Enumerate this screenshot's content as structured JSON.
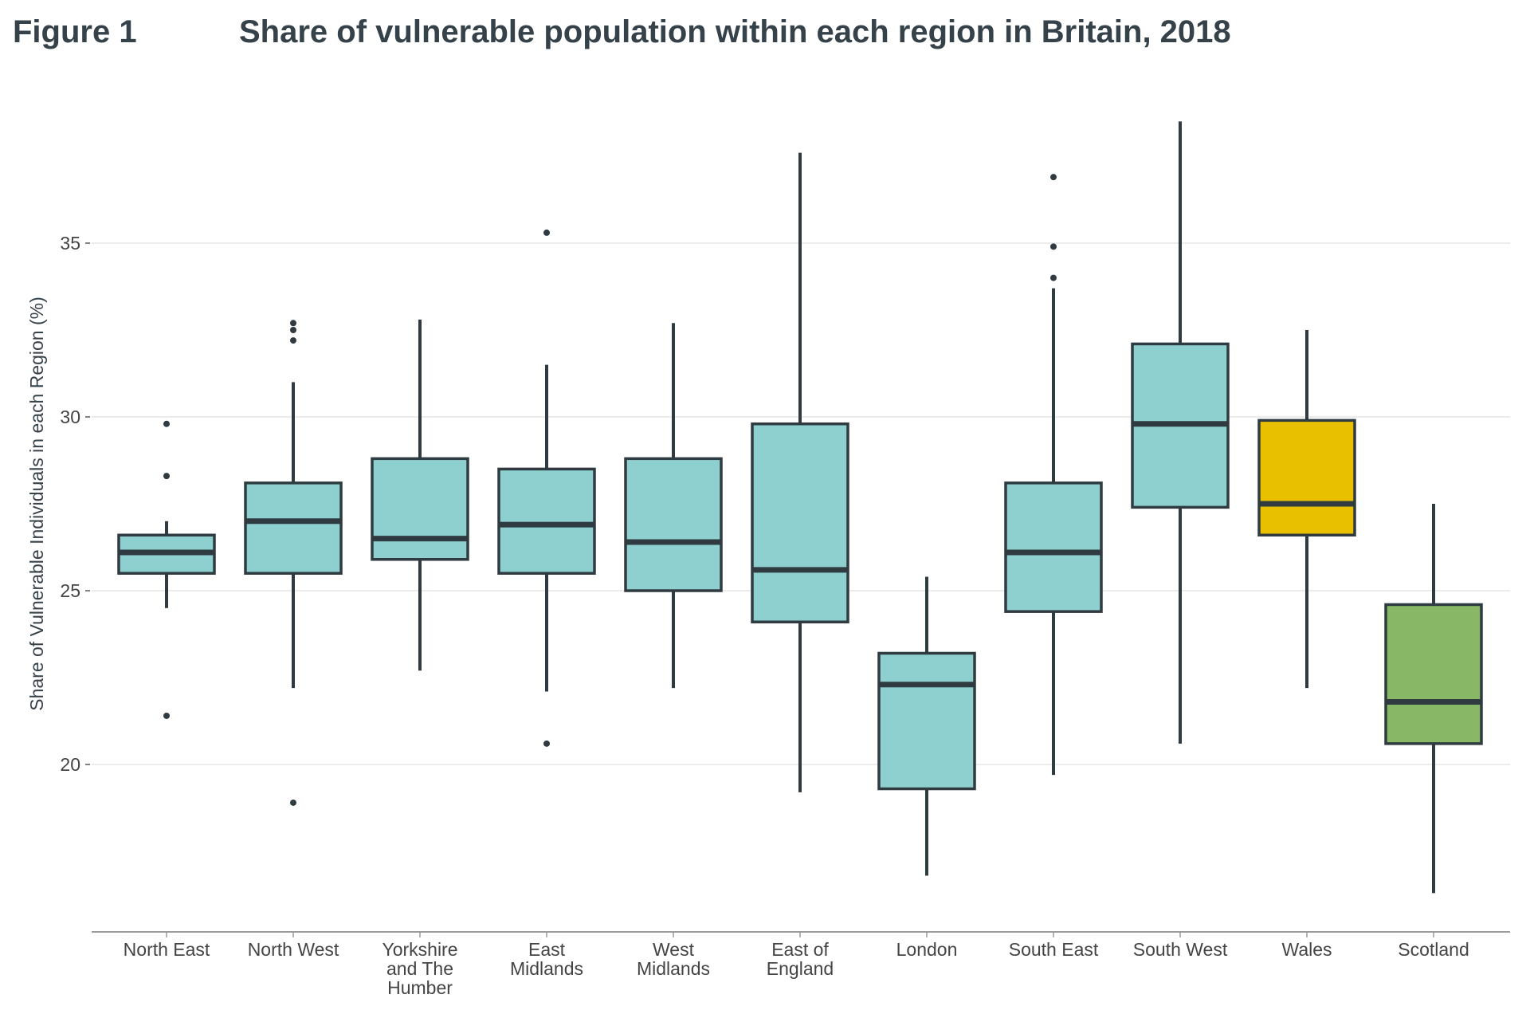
{
  "figure_label": "Figure 1",
  "chart_data": {
    "type": "box",
    "title": "Share of vulnerable population within each region in Britain, 2018",
    "xlabel": "",
    "ylabel": "Share of Vulnerable Individuals in each Region (%)",
    "ylim": [
      15,
      39
    ],
    "yticks": [
      20,
      25,
      30,
      35
    ],
    "grid": true,
    "line_color": "#2f3b40",
    "colors": {
      "default": "#8dd0cf",
      "Wales": "#e8c000",
      "Scotland": "#88b865"
    },
    "categories": [
      {
        "label": [
          "North East"
        ],
        "whisker_low": 24.5,
        "q1": 25.5,
        "median": 26.1,
        "q3": 26.6,
        "whisker_high": 27.0,
        "outliers": [
          21.4,
          28.3,
          29.8
        ]
      },
      {
        "label": [
          "North West"
        ],
        "whisker_low": 22.2,
        "q1": 25.5,
        "median": 27.0,
        "q3": 28.1,
        "whisker_high": 31.0,
        "outliers": [
          18.9,
          32.2,
          32.5,
          32.7
        ]
      },
      {
        "label": [
          "Yorkshire",
          "and The",
          "Humber"
        ],
        "whisker_low": 22.7,
        "q1": 25.9,
        "median": 26.5,
        "q3": 28.8,
        "whisker_high": 32.8,
        "outliers": []
      },
      {
        "label": [
          "East",
          "Midlands"
        ],
        "whisker_low": 22.1,
        "q1": 25.5,
        "median": 26.9,
        "q3": 28.5,
        "whisker_high": 31.5,
        "outliers": [
          20.6,
          35.3
        ]
      },
      {
        "label": [
          "West",
          "Midlands"
        ],
        "whisker_low": 22.2,
        "q1": 25.0,
        "median": 26.4,
        "q3": 28.8,
        "whisker_high": 32.7,
        "outliers": []
      },
      {
        "label": [
          "East of",
          "England"
        ],
        "whisker_low": 19.2,
        "q1": 24.1,
        "median": 25.6,
        "q3": 29.8,
        "whisker_high": 37.6,
        "outliers": []
      },
      {
        "label": [
          "London"
        ],
        "whisker_low": 16.8,
        "q1": 19.3,
        "median": 22.3,
        "q3": 23.2,
        "whisker_high": 25.4,
        "outliers": []
      },
      {
        "label": [
          "South East"
        ],
        "whisker_low": 19.7,
        "q1": 24.4,
        "median": 26.1,
        "q3": 28.1,
        "whisker_high": 33.7,
        "outliers": [
          34.0,
          34.9,
          36.9
        ]
      },
      {
        "label": [
          "South West"
        ],
        "whisker_low": 20.6,
        "q1": 27.4,
        "median": 29.8,
        "q3": 32.1,
        "whisker_high": 38.5,
        "outliers": []
      },
      {
        "label": [
          "Wales"
        ],
        "whisker_low": 22.2,
        "q1": 26.6,
        "median": 27.5,
        "q3": 29.9,
        "whisker_high": 32.5,
        "outliers": []
      },
      {
        "label": [
          "Scotland"
        ],
        "whisker_low": 16.3,
        "q1": 20.6,
        "median": 21.8,
        "q3": 24.6,
        "whisker_high": 27.5,
        "outliers": []
      }
    ]
  }
}
